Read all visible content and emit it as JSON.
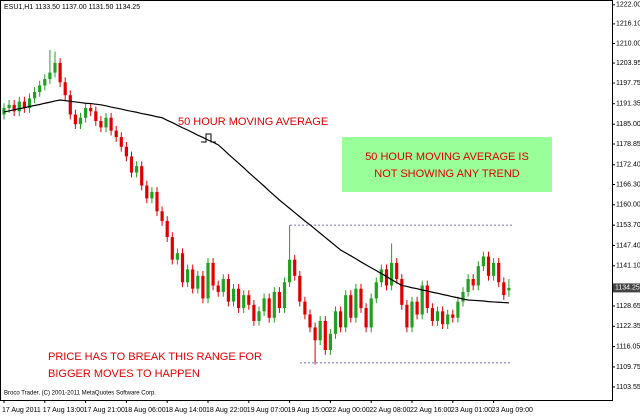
{
  "chart_data": {
    "type": "candlestick",
    "title": "ESU1,H1 1133.50 1137.00 1131.50 1134.25",
    "categories": [
      "17 Aug 2011",
      null,
      null,
      null,
      null,
      null,
      null,
      null,
      "17 Aug 13:00",
      null,
      null,
      null,
      null,
      null,
      null,
      null,
      "17 Aug 21:00",
      null,
      null,
      null,
      null,
      null,
      null,
      null,
      "18 Aug 06:00",
      null,
      null,
      null,
      null,
      null,
      null,
      null,
      "18 Aug 14:00",
      null,
      null,
      null,
      null,
      null,
      null,
      null,
      "18 Aug 22:00",
      null,
      null,
      null,
      null,
      null,
      null,
      null,
      "19 Aug 07:00",
      null,
      null,
      null,
      null,
      null,
      null,
      null,
      "19 Aug 15:00",
      null,
      null,
      null,
      null,
      null,
      null,
      null,
      "22 Aug 00:00",
      null,
      null,
      null,
      null,
      null,
      null,
      null,
      "22 Aug 08:00",
      null,
      null,
      null,
      null,
      null,
      null,
      null,
      "22 Aug 16:00",
      null,
      null,
      null,
      null,
      null,
      null,
      null,
      "23 Aug 01:00",
      null,
      null,
      null,
      null,
      null,
      null,
      null,
      "23 Aug 09:00",
      null,
      null,
      null
    ],
    "open": [
      1188,
      1190,
      1191,
      1189,
      1192,
      1190,
      1193,
      1195,
      1197,
      1199,
      1201,
      1204,
      1198,
      1194,
      1188,
      1185,
      1187,
      1190,
      1189,
      1186,
      1184,
      1187,
      1183,
      1181,
      1178,
      1175,
      1170,
      1172,
      1166,
      1162,
      1164,
      1158,
      1155,
      1150,
      1143,
      1145,
      1136,
      1140,
      1134,
      1138,
      1131,
      1142,
      1135,
      1133,
      1137,
      1130,
      1134,
      1128,
      1132,
      1129,
      1124,
      1127,
      1131,
      1125,
      1133,
      1128,
      1136,
      1143,
      1138,
      1130,
      1126,
      1122,
      1118,
      1124,
      1115,
      1120,
      1127,
      1122,
      1132,
      1125,
      1134,
      1128,
      1122,
      1131,
      1136,
      1140,
      1135,
      1142,
      1137,
      1129,
      1122,
      1130,
      1126,
      1135,
      1128,
      1124,
      1127,
      1123,
      1126,
      1125,
      1130,
      1133,
      1137,
      1135,
      1141,
      1144,
      1138,
      1142,
      1136,
      1133.5
    ],
    "high": [
      1191.5,
      1192.5,
      1192.5,
      1193.5,
      1193.5,
      1194.5,
      1196.5,
      1198.5,
      1200.5,
      1208,
      1207.5,
      1205.5,
      1199.5,
      1195.5,
      1189.5,
      1188.5,
      1191.5,
      1191.5,
      1190.5,
      1187.5,
      1188.5,
      1188.5,
      1184.5,
      1182.5,
      1179.5,
      1176.5,
      1173.5,
      1173.5,
      1167.5,
      1165.5,
      1165.5,
      1159.5,
      1156.5,
      1151.5,
      1146.5,
      1146.5,
      1141.5,
      1141.5,
      1139.5,
      1139.5,
      1143.5,
      1143.5,
      1136.5,
      1138.5,
      1138.5,
      1135.5,
      1135.5,
      1133.5,
      1133.5,
      1130.5,
      1128.5,
      1132.5,
      1132.5,
      1134.5,
      1134.5,
      1137.5,
      1153.7,
      1144.5,
      1139.5,
      1131.5,
      1127.5,
      1123.5,
      1125.5,
      1125.5,
      1121.5,
      1128.5,
      1128.5,
      1133.5,
      1133.5,
      1135.5,
      1135.5,
      1129.5,
      1132.5,
      1137.5,
      1141.5,
      1141.5,
      1148,
      1143.5,
      1138.5,
      1130.5,
      1131.5,
      1131.5,
      1136.5,
      1136.5,
      1129.5,
      1128.5,
      1128.5,
      1127.5,
      1127.5,
      1131.5,
      1134.5,
      1138.5,
      1138.5,
      1142.5,
      1145.5,
      1145.5,
      1143.5,
      1143.5,
      1137.5,
      1137
    ],
    "low": [
      1186.5,
      1188.5,
      1187.5,
      1187.5,
      1188.5,
      1188.5,
      1191.5,
      1193.5,
      1195.5,
      1197.5,
      1199.5,
      1196.5,
      1192.5,
      1186.5,
      1183.5,
      1183.5,
      1185.5,
      1187.5,
      1184.5,
      1182.5,
      1182.5,
      1181.5,
      1179.5,
      1176.5,
      1173.5,
      1168.5,
      1168.5,
      1164.5,
      1160.5,
      1160.5,
      1156.5,
      1153.5,
      1148.5,
      1141.5,
      1141.5,
      1134.5,
      1134.5,
      1132.5,
      1132.5,
      1129.5,
      1129.5,
      1133.5,
      1131.5,
      1131.5,
      1128.5,
      1128.5,
      1126.5,
      1126.5,
      1127.5,
      1122.5,
      1122.5,
      1125.5,
      1123.5,
      1123.5,
      1126.5,
      1126.5,
      1134.5,
      1136.5,
      1128.5,
      1124.5,
      1120.5,
      1110.5,
      1116.5,
      1113.5,
      1113.5,
      1118.5,
      1120.5,
      1120.5,
      1123.5,
      1123.5,
      1126.5,
      1120.5,
      1120.5,
      1129.5,
      1134.5,
      1133.5,
      1133.5,
      1135.5,
      1127.5,
      1120.5,
      1120.5,
      1124.5,
      1124.5,
      1126.5,
      1122.5,
      1122.5,
      1121.5,
      1121.5,
      1123.5,
      1123.5,
      1128.5,
      1131.5,
      1133.5,
      1133.5,
      1139.5,
      1136.5,
      1136.5,
      1134.5,
      1130.5,
      1131.5
    ],
    "close": [
      1190,
      1191,
      1189,
      1192,
      1190,
      1193,
      1195,
      1197,
      1199,
      1201,
      1204,
      1198,
      1194,
      1188,
      1185,
      1187,
      1190,
      1189,
      1186,
      1184,
      1187,
      1183,
      1181,
      1178,
      1175,
      1170,
      1172,
      1166,
      1162,
      1164,
      1158,
      1155,
      1150,
      1143,
      1145,
      1136,
      1140,
      1134,
      1138,
      1131,
      1142,
      1135,
      1133,
      1137,
      1130,
      1134,
      1128,
      1132,
      1129,
      1124,
      1127,
      1131,
      1125,
      1133,
      1128,
      1136,
      1143,
      1138,
      1130,
      1126,
      1122,
      1118,
      1124,
      1115,
      1120,
      1127,
      1122,
      1132,
      1125,
      1134,
      1128,
      1122,
      1131,
      1136,
      1140,
      1135,
      1142,
      1137,
      1129,
      1122,
      1130,
      1126,
      1135,
      1128,
      1124,
      1127,
      1123,
      1126,
      1125,
      1130,
      1133,
      1137,
      1135,
      1141,
      1144,
      1138,
      1142,
      1136,
      1132,
      1134.25
    ],
    "ma_values": [
      1188.8,
      1189.1,
      1189.5,
      1189.8,
      1190.1,
      1190.5,
      1190.8,
      1191.1,
      1191.5,
      1191.8,
      1192.2,
      1192.5,
      1192.3,
      1192.1,
      1191.9,
      1191.7,
      1191.5,
      1191.4,
      1191.2,
      1191.0,
      1190.7,
      1190.3,
      1190.0,
      1189.7,
      1189.3,
      1189.0,
      1188.7,
      1188.3,
      1188.0,
      1187.7,
      1187.3,
      1187.0,
      1186.2,
      1185.5,
      1184.7,
      1183.9,
      1183.2,
      1182.4,
      1181.6,
      1180.9,
      1180.1,
      1179.4,
      1178.6,
      1177.2,
      1175.7,
      1174.3,
      1172.9,
      1171.5,
      1170.0,
      1168.6,
      1167.2,
      1165.8,
      1164.3,
      1162.9,
      1161.5,
      1160.2,
      1158.9,
      1157.6,
      1156.3,
      1155.0,
      1153.8,
      1152.5,
      1151.2,
      1149.9,
      1148.6,
      1147.3,
      1146.0,
      1145.1,
      1144.2,
      1143.3,
      1142.3,
      1141.4,
      1140.5,
      1139.6,
      1138.7,
      1137.8,
      1136.8,
      1135.9,
      1135.0,
      1134.7,
      1134.3,
      1134.0,
      1133.6,
      1133.3,
      1132.9,
      1132.6,
      1132.2,
      1131.9,
      1131.5,
      1131.2,
      1130.8,
      1130.5,
      1130.4,
      1130.3,
      1130.2,
      1130.0,
      1129.9,
      1129.8,
      1129.7,
      1129.6
    ],
    "ma_color": "#000000",
    "up_color": "#22a022",
    "down_color": "#e00000",
    "levels": [
      1153.7,
      1111
    ],
    "level_color": "#4a4aa0",
    "ylim": [
      1099.5,
      1223.5
    ],
    "yticks": [
      {
        "value": 1222,
        "label": "1222.00"
      },
      {
        "value": 1216.1,
        "label": "1216.10"
      },
      {
        "value": 1210,
        "label": "1210.00"
      },
      {
        "value": 1203.95,
        "label": "1203.95"
      },
      {
        "value": 1197.75,
        "label": "1197.75"
      },
      {
        "value": 1191.35,
        "label": "1191.35"
      },
      {
        "value": 1185,
        "label": "1185.00"
      },
      {
        "value": 1178.85,
        "label": "1178.85"
      },
      {
        "value": 1172.4,
        "label": "1172.40"
      },
      {
        "value": 1166.3,
        "label": "1166.30"
      },
      {
        "value": 1160,
        "label": "1160.00"
      },
      {
        "value": 1153.7,
        "label": "1153.70"
      },
      {
        "value": 1147.4,
        "label": "1147.40"
      },
      {
        "value": 1141.1,
        "label": "1141.10"
      },
      {
        "value": 1128.65,
        "label": "1128.65"
      },
      {
        "value": 1122.35,
        "label": "1122.35"
      },
      {
        "value": 1116.05,
        "label": "1116.05"
      },
      {
        "value": 1109.75,
        "label": "1109.75"
      },
      {
        "value": 1103.55,
        "label": "1103.55"
      }
    ],
    "annotations": {
      "ma_label": "50 HOUR MOVING AVERAGE",
      "trend_line1": "50 HOUR MOVING AVERAGE IS",
      "trend_line2": "NOT SHOWING ANY TREND",
      "range_line1": "PRICE HAS TO BREAK THIS RANGE FOR",
      "range_line2": "BIGGER MOVES TO HAPPEN"
    },
    "copyright": "Broco Trader, (C) 2001-2011 MetaQuotes Software Corp."
  }
}
